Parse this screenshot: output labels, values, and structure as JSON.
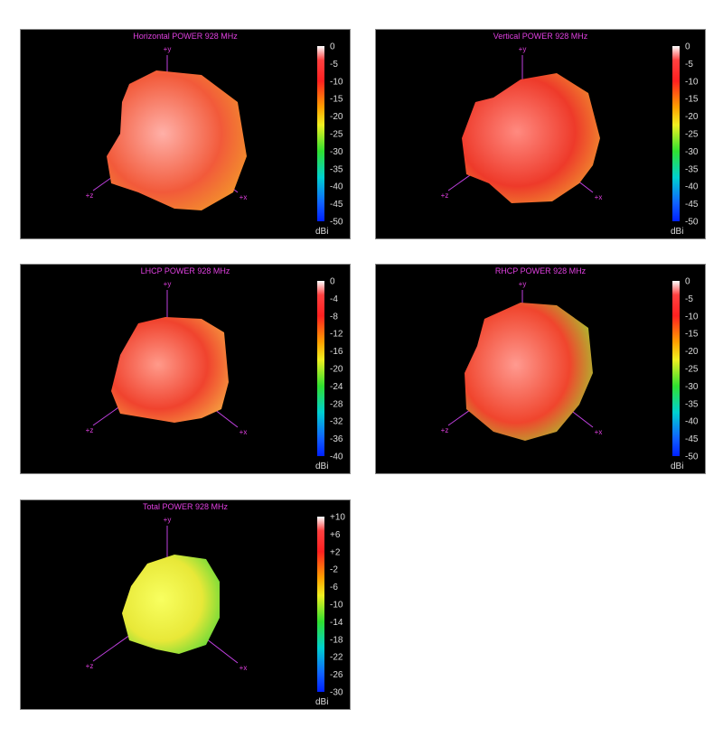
{
  "panels": [
    {
      "title": "Horizontal POWER 928  MHz",
      "ticks": [
        "0",
        "-5",
        "-10",
        "-15",
        "-20",
        "-25",
        "-30",
        "-35",
        "-40",
        "-45",
        "-50"
      ],
      "unit": "dBi",
      "axes": {
        "y": "+y",
        "z": "+z",
        "x": "+x"
      }
    },
    {
      "title": "Vertical POWER 928  MHz",
      "ticks": [
        "0",
        "-5",
        "-10",
        "-15",
        "-20",
        "-25",
        "-30",
        "-35",
        "-40",
        "-45",
        "-50"
      ],
      "unit": "dBi",
      "axes": {
        "y": "+y",
        "z": "+z",
        "x": "+x"
      }
    },
    {
      "title": "LHCP POWER 928  MHz",
      "ticks": [
        "0",
        "-4",
        "-8",
        "-12",
        "-16",
        "-20",
        "-24",
        "-28",
        "-32",
        "-36",
        "-40"
      ],
      "unit": "dBi",
      "axes": {
        "y": "+y",
        "z": "+z",
        "x": "+x"
      }
    },
    {
      "title": "RHCP POWER 928  MHz",
      "ticks": [
        "0",
        "-5",
        "-10",
        "-15",
        "-20",
        "-25",
        "-30",
        "-35",
        "-40",
        "-45",
        "-50"
      ],
      "unit": "dBi",
      "axes": {
        "y": "+y",
        "z": "+z",
        "x": "+x"
      }
    },
    {
      "title": "Total POWER 928  MHz",
      "ticks": [
        "+10",
        "+6",
        "+2",
        "-2",
        "-6",
        "-10",
        "-14",
        "-18",
        "-22",
        "-26",
        "-30"
      ],
      "unit": "dBi",
      "axes": {
        "y": "+y",
        "z": "+z",
        "x": "+x"
      }
    }
  ]
}
